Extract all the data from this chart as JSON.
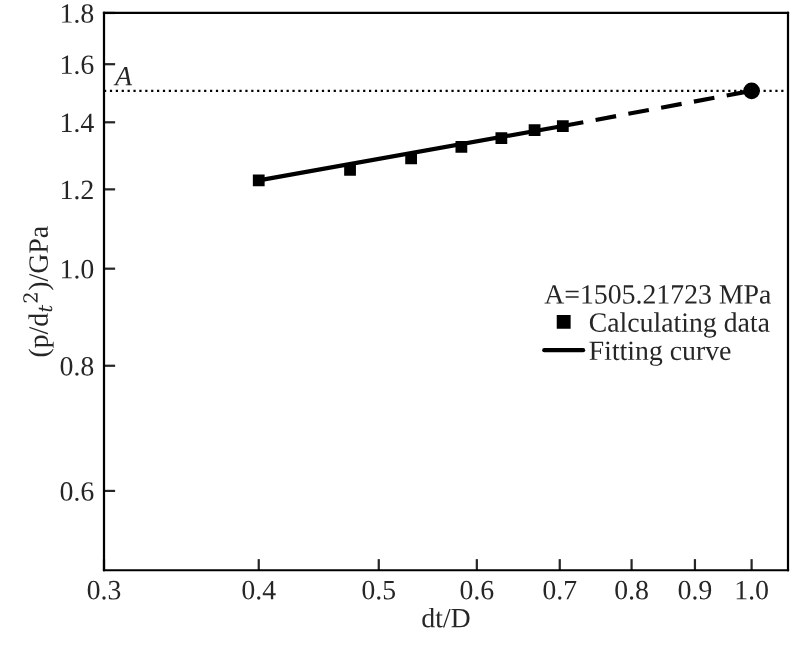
{
  "chart_data": {
    "type": "scatter",
    "xlabel": "dt/D",
    "ylabel": "(p/d$_{t}$$^{2}$)/GPa",
    "legend_title": "A=1505.21723 MPa",
    "log": "xy",
    "xlim": [
      0.3,
      1.07
    ],
    "ylim": [
      0.5,
      1.8
    ],
    "xticks": [
      0.3,
      0.4,
      0.5,
      0.6,
      0.7,
      0.8,
      0.9,
      {
        "value": 1.0,
        "label": "1.0"
      }
    ],
    "yticks": [
      0.6,
      0.8,
      {
        "value": 1.0,
        "label": "1.0"
      },
      1.2,
      1.4,
      1.6,
      1.8
    ],
    "series": [
      {
        "name": "Calculating data",
        "marker": "square",
        "color": "#000000",
        "x": [
          0.4,
          0.474,
          0.531,
          0.583,
          0.628,
          0.668,
          0.704
        ],
        "values": [
          1.225,
          1.255,
          1.289,
          1.323,
          1.35,
          1.375,
          1.388
        ]
      },
      {
        "name": "Fitting curve",
        "type": "line",
        "marker": "none",
        "line_style": "solid",
        "color": "#000000",
        "x": [
          0.4,
          0.704
        ],
        "values": [
          1.225,
          1.388
        ]
      },
      {
        "type": "line",
        "marker": "circle",
        "line_style": "dashed",
        "color": "#000000",
        "x": [
          0.704,
          1.0
        ],
        "values": [
          1.388,
          1.505
        ]
      }
    ],
    "ref_lines": [
      {
        "axis": "y",
        "value": 1.505,
        "label": "A",
        "line_style": "dotted",
        "color": "#000000"
      }
    ],
    "legend": "right",
    "grid": false
  }
}
